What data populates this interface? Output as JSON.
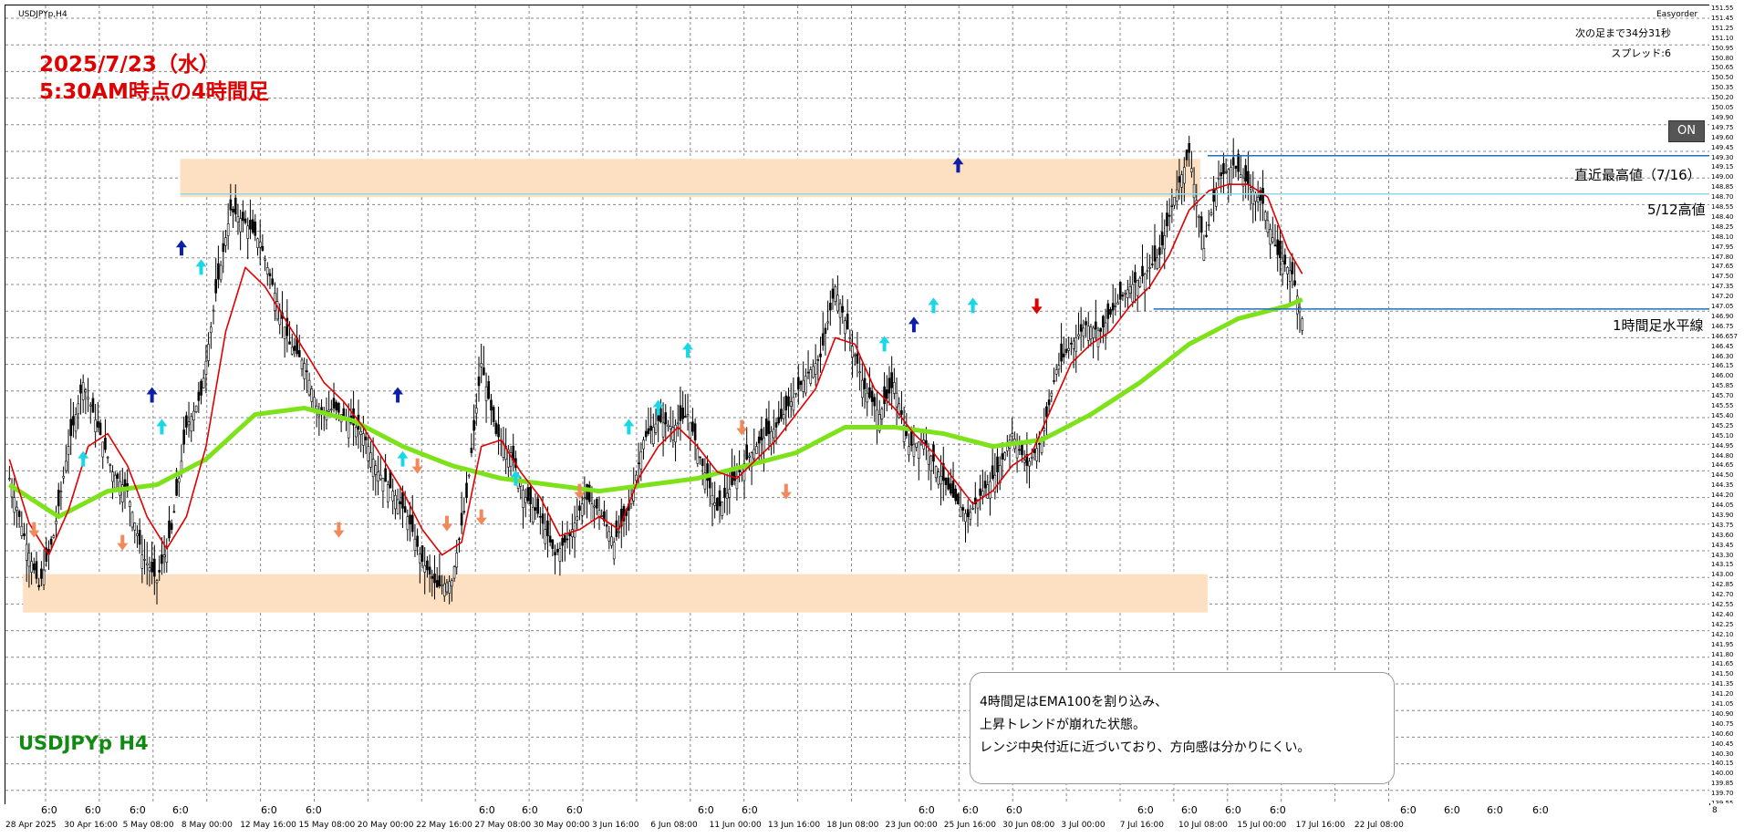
{
  "window": {
    "symbol_caption": "USDJPYp,H4",
    "ea_name": "Easyorder",
    "next_bar": "次の足まで34分31秒",
    "spread": "スプレッド:6",
    "on_button": "ON",
    "corner_marker": "8"
  },
  "annotations": {
    "title_line1": "2025/7/23（水）",
    "title_line2": "5:30AM時点の4時間足",
    "symbol_big": "USDJPYp H4",
    "recent_high_label": "直近最高値（7/16）",
    "may12_high_label": "5/12高値",
    "h1_line_label": "1時間足水平線",
    "comment_lines": [
      "4時間足はEMA100を割り込み、",
      "上昇トレンドが崩れた状態。",
      "レンジ中央付近に近づいており、方向感は分かりにくい。"
    ]
  },
  "colors": {
    "zone": "#fde0c2",
    "fast_ma": "#e00000",
    "ema100": "#7ee21a",
    "candle": "#000000",
    "recent_high_line": "#1f6fc0",
    "may12_line": "#8fd8e8",
    "h1_line": "#1f6fc0",
    "title_text": "#e00000",
    "symbol_text": "#118a11",
    "arrow_up_blue": "#0b1fa8",
    "arrow_up_cyan": "#18d8e8",
    "arrow_down_orange": "#f08a5a",
    "arrow_down_red": "#e00000"
  },
  "chart_data": {
    "type": "candlestick",
    "symbol": "USDJPYp",
    "timeframe": "H4",
    "ylim": [
      139.0,
      151.5
    ],
    "price_ticks": [
      "151.55",
      "151.45",
      "151.25",
      "151.10",
      "150.95",
      "150.80",
      "150.65",
      "150.50",
      "150.35",
      "150.20",
      "150.05",
      "149.90",
      "149.75",
      "149.60",
      "149.45",
      "149.30",
      "149.15",
      "149.00",
      "148.85",
      "148.70",
      "148.55",
      "148.40",
      "148.25",
      "148.10",
      "147.95",
      "147.80",
      "147.65",
      "147.50",
      "147.35",
      "147.20",
      "147.05",
      "146.90",
      "146.75",
      "146.657",
      "146.45",
      "146.30",
      "146.15",
      "146.00",
      "145.85",
      "145.70",
      "145.55",
      "145.40",
      "145.25",
      "145.10",
      "144.95",
      "144.80",
      "144.65",
      "144.50",
      "144.35",
      "144.20",
      "144.05",
      "143.90",
      "143.75",
      "143.60",
      "143.45",
      "143.30",
      "143.15",
      "143.00",
      "142.85",
      "142.70",
      "142.55",
      "142.40",
      "142.25",
      "142.10",
      "141.95",
      "141.80",
      "141.65",
      "141.50",
      "141.35",
      "141.20",
      "141.05",
      "140.90",
      "140.75",
      "140.60",
      "140.45",
      "140.30",
      "140.15",
      "140.00",
      "139.85",
      "139.70",
      "139.55"
    ],
    "date_labels": [
      "28 Apr 2025",
      "30 Apr 16:00",
      "5 May 08:00",
      "8 May 00:00",
      "12 May 16:00",
      "15 May 08:00",
      "20 May 00:00",
      "22 May 16:00",
      "27 May 08:00",
      "30 May 00:00",
      "3 Jun 16:00",
      "6 Jun 08:00",
      "11 Jun 00:00",
      "13 Jun 16:00",
      "18 Jun 08:00",
      "23 Jun 00:00",
      "25 Jun 16:00",
      "30 Jun 08:00",
      "3 Jul 00:00",
      "7 Jul 16:00",
      "10 Jul 08:00",
      "15 Jul 00:00",
      "17 Jul 16:00",
      "22 Jul 08:00"
    ],
    "hour_labels": [
      "6:0",
      "6:0",
      "6:0",
      "6:0",
      "6:0",
      "6:0",
      "6:0",
      "6:0",
      "6:0",
      "6:0",
      "6:0",
      "6:0",
      "6:0",
      "6:0",
      "6:0",
      "6:0",
      "6:0",
      "6:0",
      "6:0",
      "6:0",
      "6:0",
      "6:0"
    ],
    "close_path": [
      [
        0,
        144.1
      ],
      [
        6,
        143.2
      ],
      [
        12,
        142.4
      ],
      [
        18,
        143.2
      ],
      [
        24,
        144.6
      ],
      [
        30,
        145.6
      ],
      [
        36,
        144.9
      ],
      [
        42,
        144.2
      ],
      [
        48,
        143.9
      ],
      [
        54,
        142.9
      ],
      [
        60,
        142.5
      ],
      [
        66,
        143.3
      ],
      [
        72,
        144.9
      ],
      [
        78,
        145.4
      ],
      [
        84,
        147.0
      ],
      [
        90,
        148.3
      ],
      [
        96,
        148.1
      ],
      [
        102,
        147.8
      ],
      [
        108,
        147.0
      ],
      [
        114,
        146.2
      ],
      [
        120,
        145.9
      ],
      [
        126,
        145.1
      ],
      [
        132,
        145.2
      ],
      [
        138,
        145.0
      ],
      [
        144,
        144.8
      ],
      [
        150,
        144.2
      ],
      [
        156,
        143.9
      ],
      [
        162,
        143.5
      ],
      [
        168,
        142.8
      ],
      [
        174,
        142.4
      ],
      [
        180,
        142.5
      ],
      [
        186,
        143.8
      ],
      [
        192,
        145.9
      ],
      [
        198,
        144.8
      ],
      [
        204,
        144.5
      ],
      [
        210,
        143.8
      ],
      [
        216,
        143.5
      ],
      [
        222,
        142.9
      ],
      [
        228,
        143.2
      ],
      [
        234,
        143.8
      ],
      [
        240,
        143.6
      ],
      [
        246,
        143.1
      ],
      [
        252,
        143.6
      ],
      [
        258,
        144.7
      ],
      [
        264,
        145.0
      ],
      [
        270,
        144.9
      ],
      [
        276,
        145.1
      ],
      [
        282,
        144.3
      ],
      [
        288,
        143.6
      ],
      [
        294,
        144.0
      ],
      [
        300,
        144.4
      ],
      [
        306,
        144.7
      ],
      [
        312,
        144.9
      ],
      [
        318,
        145.3
      ],
      [
        324,
        145.7
      ],
      [
        330,
        146.0
      ],
      [
        336,
        147.1
      ],
      [
        342,
        146.3
      ],
      [
        348,
        145.5
      ],
      [
        354,
        145.1
      ],
      [
        360,
        145.6
      ],
      [
        366,
        144.6
      ],
      [
        372,
        144.7
      ],
      [
        378,
        144.2
      ],
      [
        384,
        143.8
      ],
      [
        390,
        143.5
      ],
      [
        396,
        143.9
      ],
      [
        402,
        144.2
      ],
      [
        408,
        144.8
      ],
      [
        414,
        144.3
      ],
      [
        420,
        144.7
      ],
      [
        426,
        145.8
      ],
      [
        432,
        146.2
      ],
      [
        438,
        146.5
      ],
      [
        444,
        146.4
      ],
      [
        450,
        146.8
      ],
      [
        456,
        147.1
      ],
      [
        462,
        147.3
      ],
      [
        468,
        147.6
      ],
      [
        474,
        148.5
      ],
      [
        480,
        149.2
      ],
      [
        486,
        147.7
      ],
      [
        492,
        148.8
      ],
      [
        498,
        149.0
      ],
      [
        504,
        148.7
      ],
      [
        510,
        148.4
      ],
      [
        516,
        147.6
      ],
      [
        522,
        147.3
      ],
      [
        526,
        146.6
      ]
    ],
    "fast_ma_path": [
      [
        0,
        144.4
      ],
      [
        8,
        143.4
      ],
      [
        16,
        142.9
      ],
      [
        24,
        143.6
      ],
      [
        32,
        144.6
      ],
      [
        40,
        144.8
      ],
      [
        48,
        144.3
      ],
      [
        56,
        143.5
      ],
      [
        64,
        143.0
      ],
      [
        72,
        143.5
      ],
      [
        80,
        144.6
      ],
      [
        88,
        146.4
      ],
      [
        96,
        147.4
      ],
      [
        104,
        147.1
      ],
      [
        112,
        146.6
      ],
      [
        120,
        146.1
      ],
      [
        128,
        145.6
      ],
      [
        136,
        145.3
      ],
      [
        144,
        144.9
      ],
      [
        152,
        144.4
      ],
      [
        160,
        143.9
      ],
      [
        168,
        143.3
      ],
      [
        176,
        142.9
      ],
      [
        184,
        143.1
      ],
      [
        192,
        144.6
      ],
      [
        200,
        144.7
      ],
      [
        208,
        144.2
      ],
      [
        216,
        143.8
      ],
      [
        224,
        143.2
      ],
      [
        232,
        143.3
      ],
      [
        240,
        143.5
      ],
      [
        248,
        143.3
      ],
      [
        256,
        144.1
      ],
      [
        264,
        144.6
      ],
      [
        272,
        144.9
      ],
      [
        280,
        144.6
      ],
      [
        288,
        144.2
      ],
      [
        296,
        144.1
      ],
      [
        304,
        144.4
      ],
      [
        312,
        144.7
      ],
      [
        320,
        145.1
      ],
      [
        328,
        145.5
      ],
      [
        336,
        146.3
      ],
      [
        344,
        146.2
      ],
      [
        352,
        145.5
      ],
      [
        360,
        145.2
      ],
      [
        368,
        144.8
      ],
      [
        376,
        144.5
      ],
      [
        384,
        144.1
      ],
      [
        392,
        143.7
      ],
      [
        400,
        143.9
      ],
      [
        408,
        144.3
      ],
      [
        416,
        144.5
      ],
      [
        424,
        145.2
      ],
      [
        432,
        145.9
      ],
      [
        440,
        146.2
      ],
      [
        448,
        146.4
      ],
      [
        456,
        146.8
      ],
      [
        464,
        147.1
      ],
      [
        472,
        147.6
      ],
      [
        480,
        148.3
      ],
      [
        488,
        148.6
      ],
      [
        496,
        148.7
      ],
      [
        504,
        148.7
      ],
      [
        512,
        148.5
      ],
      [
        520,
        147.7
      ],
      [
        526,
        147.3
      ]
    ],
    "ema100_path": [
      [
        0,
        144.0
      ],
      [
        20,
        143.5
      ],
      [
        40,
        143.9
      ],
      [
        60,
        144.0
      ],
      [
        80,
        144.4
      ],
      [
        100,
        145.1
      ],
      [
        120,
        145.2
      ],
      [
        140,
        145.0
      ],
      [
        160,
        144.6
      ],
      [
        180,
        144.3
      ],
      [
        200,
        144.1
      ],
      [
        220,
        144.0
      ],
      [
        240,
        143.9
      ],
      [
        260,
        144.0
      ],
      [
        280,
        144.1
      ],
      [
        300,
        144.3
      ],
      [
        320,
        144.5
      ],
      [
        340,
        144.9
      ],
      [
        360,
        144.9
      ],
      [
        380,
        144.8
      ],
      [
        400,
        144.6
      ],
      [
        420,
        144.7
      ],
      [
        440,
        145.1
      ],
      [
        460,
        145.6
      ],
      [
        480,
        146.2
      ],
      [
        500,
        146.6
      ],
      [
        520,
        146.8
      ],
      [
        526,
        146.9
      ]
    ],
    "zones": [
      {
        "from_bar": 70,
        "to_bar": 485,
        "low": 148.5,
        "high": 149.1
      },
      {
        "from_bar": 6,
        "to_bar": 488,
        "low": 142.0,
        "high": 142.6
      }
    ],
    "horizontal_lines": [
      {
        "name": "直近最高値（7/16）",
        "price": 149.15,
        "from_bar": 488
      },
      {
        "name": "5/12高値",
        "price": 148.55,
        "from_bar": 70
      },
      {
        "name": "1時間足水平線",
        "price": 146.75,
        "from_bar": 466
      }
    ],
    "signal_arrows": [
      {
        "bar": 10,
        "price": 143.3,
        "kind": "down-orange"
      },
      {
        "bar": 30,
        "price": 144.4,
        "kind": "up-cyan"
      },
      {
        "bar": 46,
        "price": 143.1,
        "kind": "down-orange"
      },
      {
        "bar": 58,
        "price": 145.4,
        "kind": "up-blue"
      },
      {
        "bar": 62,
        "price": 144.9,
        "kind": "up-cyan"
      },
      {
        "bar": 70,
        "price": 147.7,
        "kind": "up-blue"
      },
      {
        "bar": 78,
        "price": 147.4,
        "kind": "up-cyan"
      },
      {
        "bar": 134,
        "price": 143.3,
        "kind": "down-orange"
      },
      {
        "bar": 158,
        "price": 145.4,
        "kind": "up-blue"
      },
      {
        "bar": 160,
        "price": 144.4,
        "kind": "up-cyan"
      },
      {
        "bar": 166,
        "price": 144.3,
        "kind": "down-orange"
      },
      {
        "bar": 178,
        "price": 143.4,
        "kind": "down-orange"
      },
      {
        "bar": 192,
        "price": 143.5,
        "kind": "down-orange"
      },
      {
        "bar": 206,
        "price": 144.1,
        "kind": "up-cyan"
      },
      {
        "bar": 232,
        "price": 143.9,
        "kind": "down-orange"
      },
      {
        "bar": 252,
        "price": 144.9,
        "kind": "up-cyan"
      },
      {
        "bar": 264,
        "price": 145.2,
        "kind": "up-cyan"
      },
      {
        "bar": 276,
        "price": 146.1,
        "kind": "up-cyan"
      },
      {
        "bar": 298,
        "price": 144.9,
        "kind": "down-orange"
      },
      {
        "bar": 316,
        "price": 143.9,
        "kind": "down-orange"
      },
      {
        "bar": 356,
        "price": 146.2,
        "kind": "up-cyan"
      },
      {
        "bar": 368,
        "price": 146.5,
        "kind": "up-blue"
      },
      {
        "bar": 376,
        "price": 146.8,
        "kind": "up-cyan"
      },
      {
        "bar": 386,
        "price": 149.0,
        "kind": "up-blue"
      },
      {
        "bar": 392,
        "price": 146.8,
        "kind": "up-cyan"
      },
      {
        "bar": 418,
        "price": 146.8,
        "kind": "down-red"
      }
    ]
  }
}
